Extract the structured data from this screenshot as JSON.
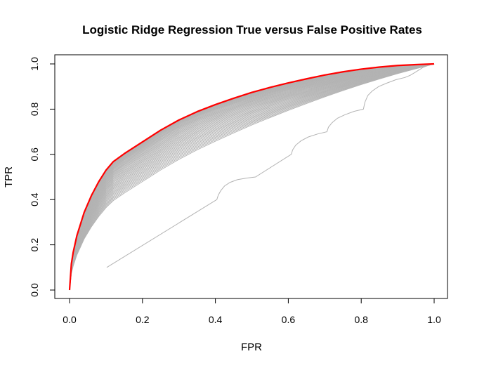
{
  "chart_data": {
    "type": "line",
    "title": "Logistic Ridge Regression True versus False Positive Rates",
    "xlabel": "FPR",
    "ylabel": "TPR",
    "xlim": [
      0,
      1
    ],
    "ylim": [
      0,
      1
    ],
    "xticks": [
      "0.0",
      "0.2",
      "0.4",
      "0.6",
      "0.8",
      "1.0"
    ],
    "yticks": [
      "0.0",
      "0.2",
      "0.4",
      "0.6",
      "0.8",
      "1.0"
    ],
    "grid": false,
    "legend": "none",
    "colors": {
      "path_curves": "#b3b3b3",
      "best_curve": "#ff0000",
      "axes": "#000000"
    },
    "gray_curve_count": 40,
    "best_curve": {
      "x": [
        0,
        0.005,
        0.01,
        0.02,
        0.04,
        0.06,
        0.08,
        0.1,
        0.12,
        0.15,
        0.2,
        0.25,
        0.3,
        0.35,
        0.4,
        0.45,
        0.5,
        0.55,
        0.6,
        0.65,
        0.7,
        0.75,
        0.8,
        0.85,
        0.9,
        0.95,
        1
      ],
      "y": [
        0,
        0.116,
        0.167,
        0.24,
        0.343,
        0.418,
        0.479,
        0.53,
        0.568,
        0.603,
        0.655,
        0.707,
        0.752,
        0.789,
        0.82,
        0.848,
        0.874,
        0.896,
        0.916,
        0.934,
        0.951,
        0.965,
        0.977,
        0.986,
        0.993,
        0.997,
        1
      ]
    },
    "degenerate_curve": {
      "x": [
        0.102,
        0.404,
        0.408,
        0.415,
        0.425,
        0.44,
        0.46,
        0.485,
        0.51,
        0.608,
        0.612,
        0.62,
        0.635,
        0.655,
        0.68,
        0.706,
        0.71,
        0.72,
        0.735,
        0.755,
        0.78,
        0.806,
        0.81,
        0.818,
        0.83,
        0.848,
        0.87,
        0.895,
        0.92,
        0.935,
        0.95,
        0.97,
        0.99,
        1
      ],
      "y": [
        0.1,
        0.4,
        0.42,
        0.44,
        0.46,
        0.476,
        0.488,
        0.495,
        0.5,
        0.6,
        0.62,
        0.64,
        0.66,
        0.677,
        0.69,
        0.7,
        0.72,
        0.74,
        0.76,
        0.775,
        0.79,
        0.8,
        0.83,
        0.86,
        0.88,
        0.9,
        0.915,
        0.93,
        0.94,
        0.95,
        0.965,
        0.985,
        0.997,
        1
      ]
    }
  }
}
